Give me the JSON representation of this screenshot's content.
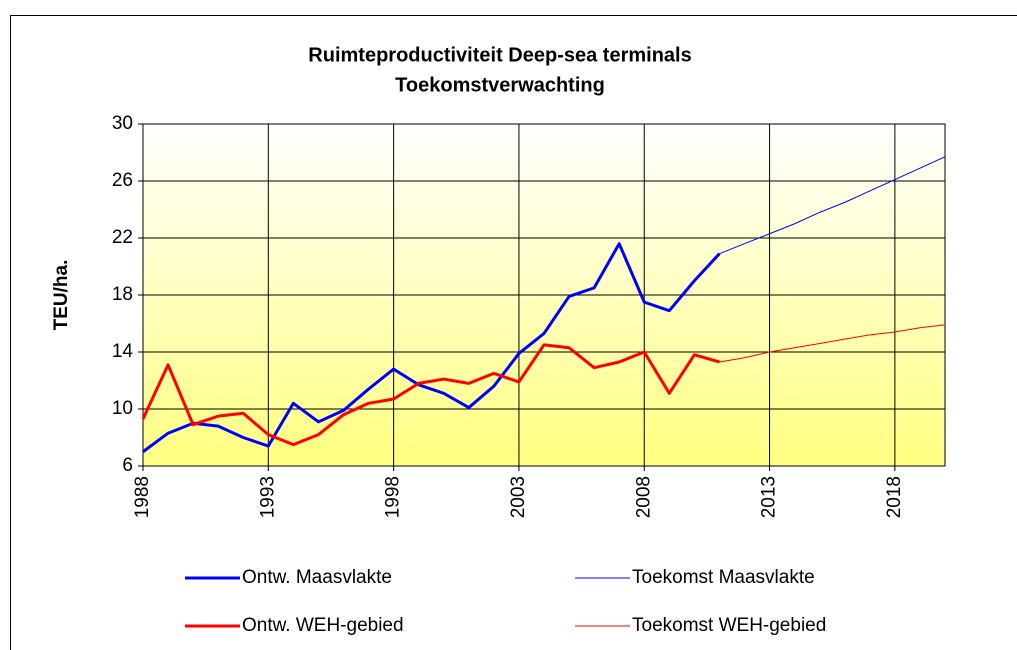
{
  "chart_data": {
    "type": "line",
    "title": "Ruimteproductiviteit Deep-sea terminals",
    "subtitle": "Toekomstverwachting",
    "y_label": "TEU/ha.",
    "x": [
      1988,
      1989,
      1990,
      1991,
      1992,
      1993,
      1994,
      1995,
      1996,
      1997,
      1998,
      1999,
      2000,
      2001,
      2002,
      2003,
      2004,
      2005,
      2006,
      2007,
      2008,
      2009,
      2010,
      2011,
      2012,
      2013,
      2014,
      2015,
      2016,
      2017,
      2018,
      2019,
      2020
    ],
    "series": [
      {
        "name": "Ontw. Maasvlakte",
        "color": "#0000ff",
        "width": 3,
        "values": [
          7.0,
          8.3,
          9.0,
          8.8,
          8.0,
          7.4,
          10.4,
          9.1,
          9.9,
          11.4,
          12.8,
          11.7,
          11.1,
          10.1,
          11.6,
          13.9,
          15.3,
          17.9,
          18.5,
          21.6,
          17.5,
          16.9,
          19.0,
          20.9,
          null,
          null,
          null,
          null,
          null,
          null,
          null,
          null,
          null
        ]
      },
      {
        "name": "Toekomst Maasvlakte",
        "color": "#0000ff",
        "width": 1,
        "values": [
          null,
          null,
          null,
          null,
          null,
          null,
          null,
          null,
          null,
          null,
          null,
          null,
          null,
          null,
          null,
          null,
          null,
          null,
          null,
          null,
          null,
          null,
          null,
          20.9,
          21.6,
          22.3,
          23.0,
          23.8,
          24.5,
          25.3,
          26.1,
          26.9,
          27.7
        ]
      },
      {
        "name": "Ontw. WEH-gebied",
        "color": "#ff0000",
        "width": 3,
        "values": [
          9.3,
          13.1,
          8.9,
          9.5,
          9.7,
          8.2,
          7.5,
          8.2,
          9.6,
          10.4,
          10.7,
          11.8,
          12.1,
          11.8,
          12.5,
          11.9,
          14.5,
          14.3,
          12.9,
          13.3,
          14.0,
          11.1,
          13.8,
          13.3,
          null,
          null,
          null,
          null,
          null,
          null,
          null,
          null,
          null
        ]
      },
      {
        "name": "Toekomst WEH-gebied",
        "color": "#ff0000",
        "width": 1,
        "values": [
          null,
          null,
          null,
          null,
          null,
          null,
          null,
          null,
          null,
          null,
          null,
          null,
          null,
          null,
          null,
          null,
          null,
          null,
          null,
          null,
          null,
          null,
          null,
          13.3,
          13.6,
          14.0,
          14.3,
          14.6,
          14.9,
          15.2,
          15.4,
          15.7,
          15.9
        ]
      }
    ],
    "xlim": [
      1988,
      2020
    ],
    "xticks": [
      1988,
      1993,
      1998,
      2003,
      2008,
      2013,
      2018
    ],
    "ylim": [
      6,
      30
    ],
    "yticks": [
      6,
      10,
      14,
      18,
      22,
      26,
      30
    ],
    "grid": true,
    "legend": "bottom"
  }
}
